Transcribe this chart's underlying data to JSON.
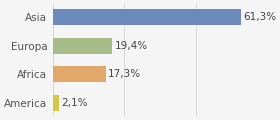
{
  "categories": [
    "America",
    "Africa",
    "Europa",
    "Asia"
  ],
  "values": [
    2.1,
    17.3,
    19.4,
    61.3
  ],
  "labels": [
    "2,1%",
    "17,3%",
    "19,4%",
    "61,3%"
  ],
  "bar_colors": [
    "#d4c84a",
    "#e0a86a",
    "#a8bc8a",
    "#6b8cba"
  ],
  "background_color": "#f5f5f5",
  "xlim": [
    0,
    70
  ],
  "label_fontsize": 7.5,
  "tick_fontsize": 7.5
}
